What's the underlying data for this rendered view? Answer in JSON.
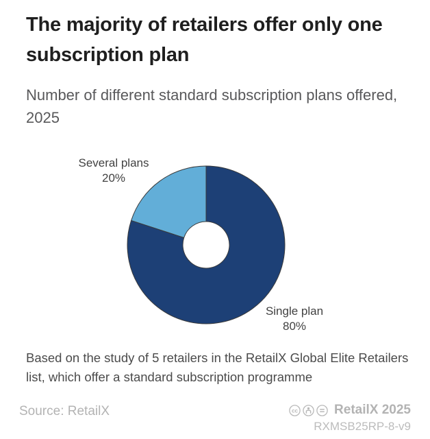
{
  "header": {
    "title": "The majority of retailers offer only one subscription plan",
    "subtitle": "Number of different standard subscription plans offered, 2025"
  },
  "note": "Based on the study of 5 retailers in the RetailX Global Elite Retailers list, which offer a standard subscription programme",
  "footer": {
    "source": "Source: RetailX",
    "credit": "RetailX 2025",
    "code": "RXMSB25RP-8-v9",
    "license_icons": [
      "cc",
      "attribution",
      "no-derivatives"
    ]
  },
  "chart_data": {
    "type": "pie",
    "subtype": "donut",
    "title": "Number of different standard subscription plans offered, 2025",
    "unit": "%",
    "segments": [
      {
        "label": "Single plan",
        "value": 80,
        "display": "80%",
        "color": "#1d4076"
      },
      {
        "label": "Several plans",
        "value": 20,
        "display": "20%",
        "color": "#62aed8"
      }
    ],
    "start_angle_deg": 0,
    "direction": "clockwise",
    "inner_radius_ratio": 0.29,
    "outline_color": "#3a3a3a",
    "legend": "none",
    "labels_position": "outside"
  },
  "colors": {
    "background": "#ffffff",
    "title_text": "#1f1f1f",
    "subtitle_text": "#58585a",
    "note_text": "#4b4b4b",
    "footer_text": "#b3b3b3",
    "slice_label_text": "#414141"
  }
}
